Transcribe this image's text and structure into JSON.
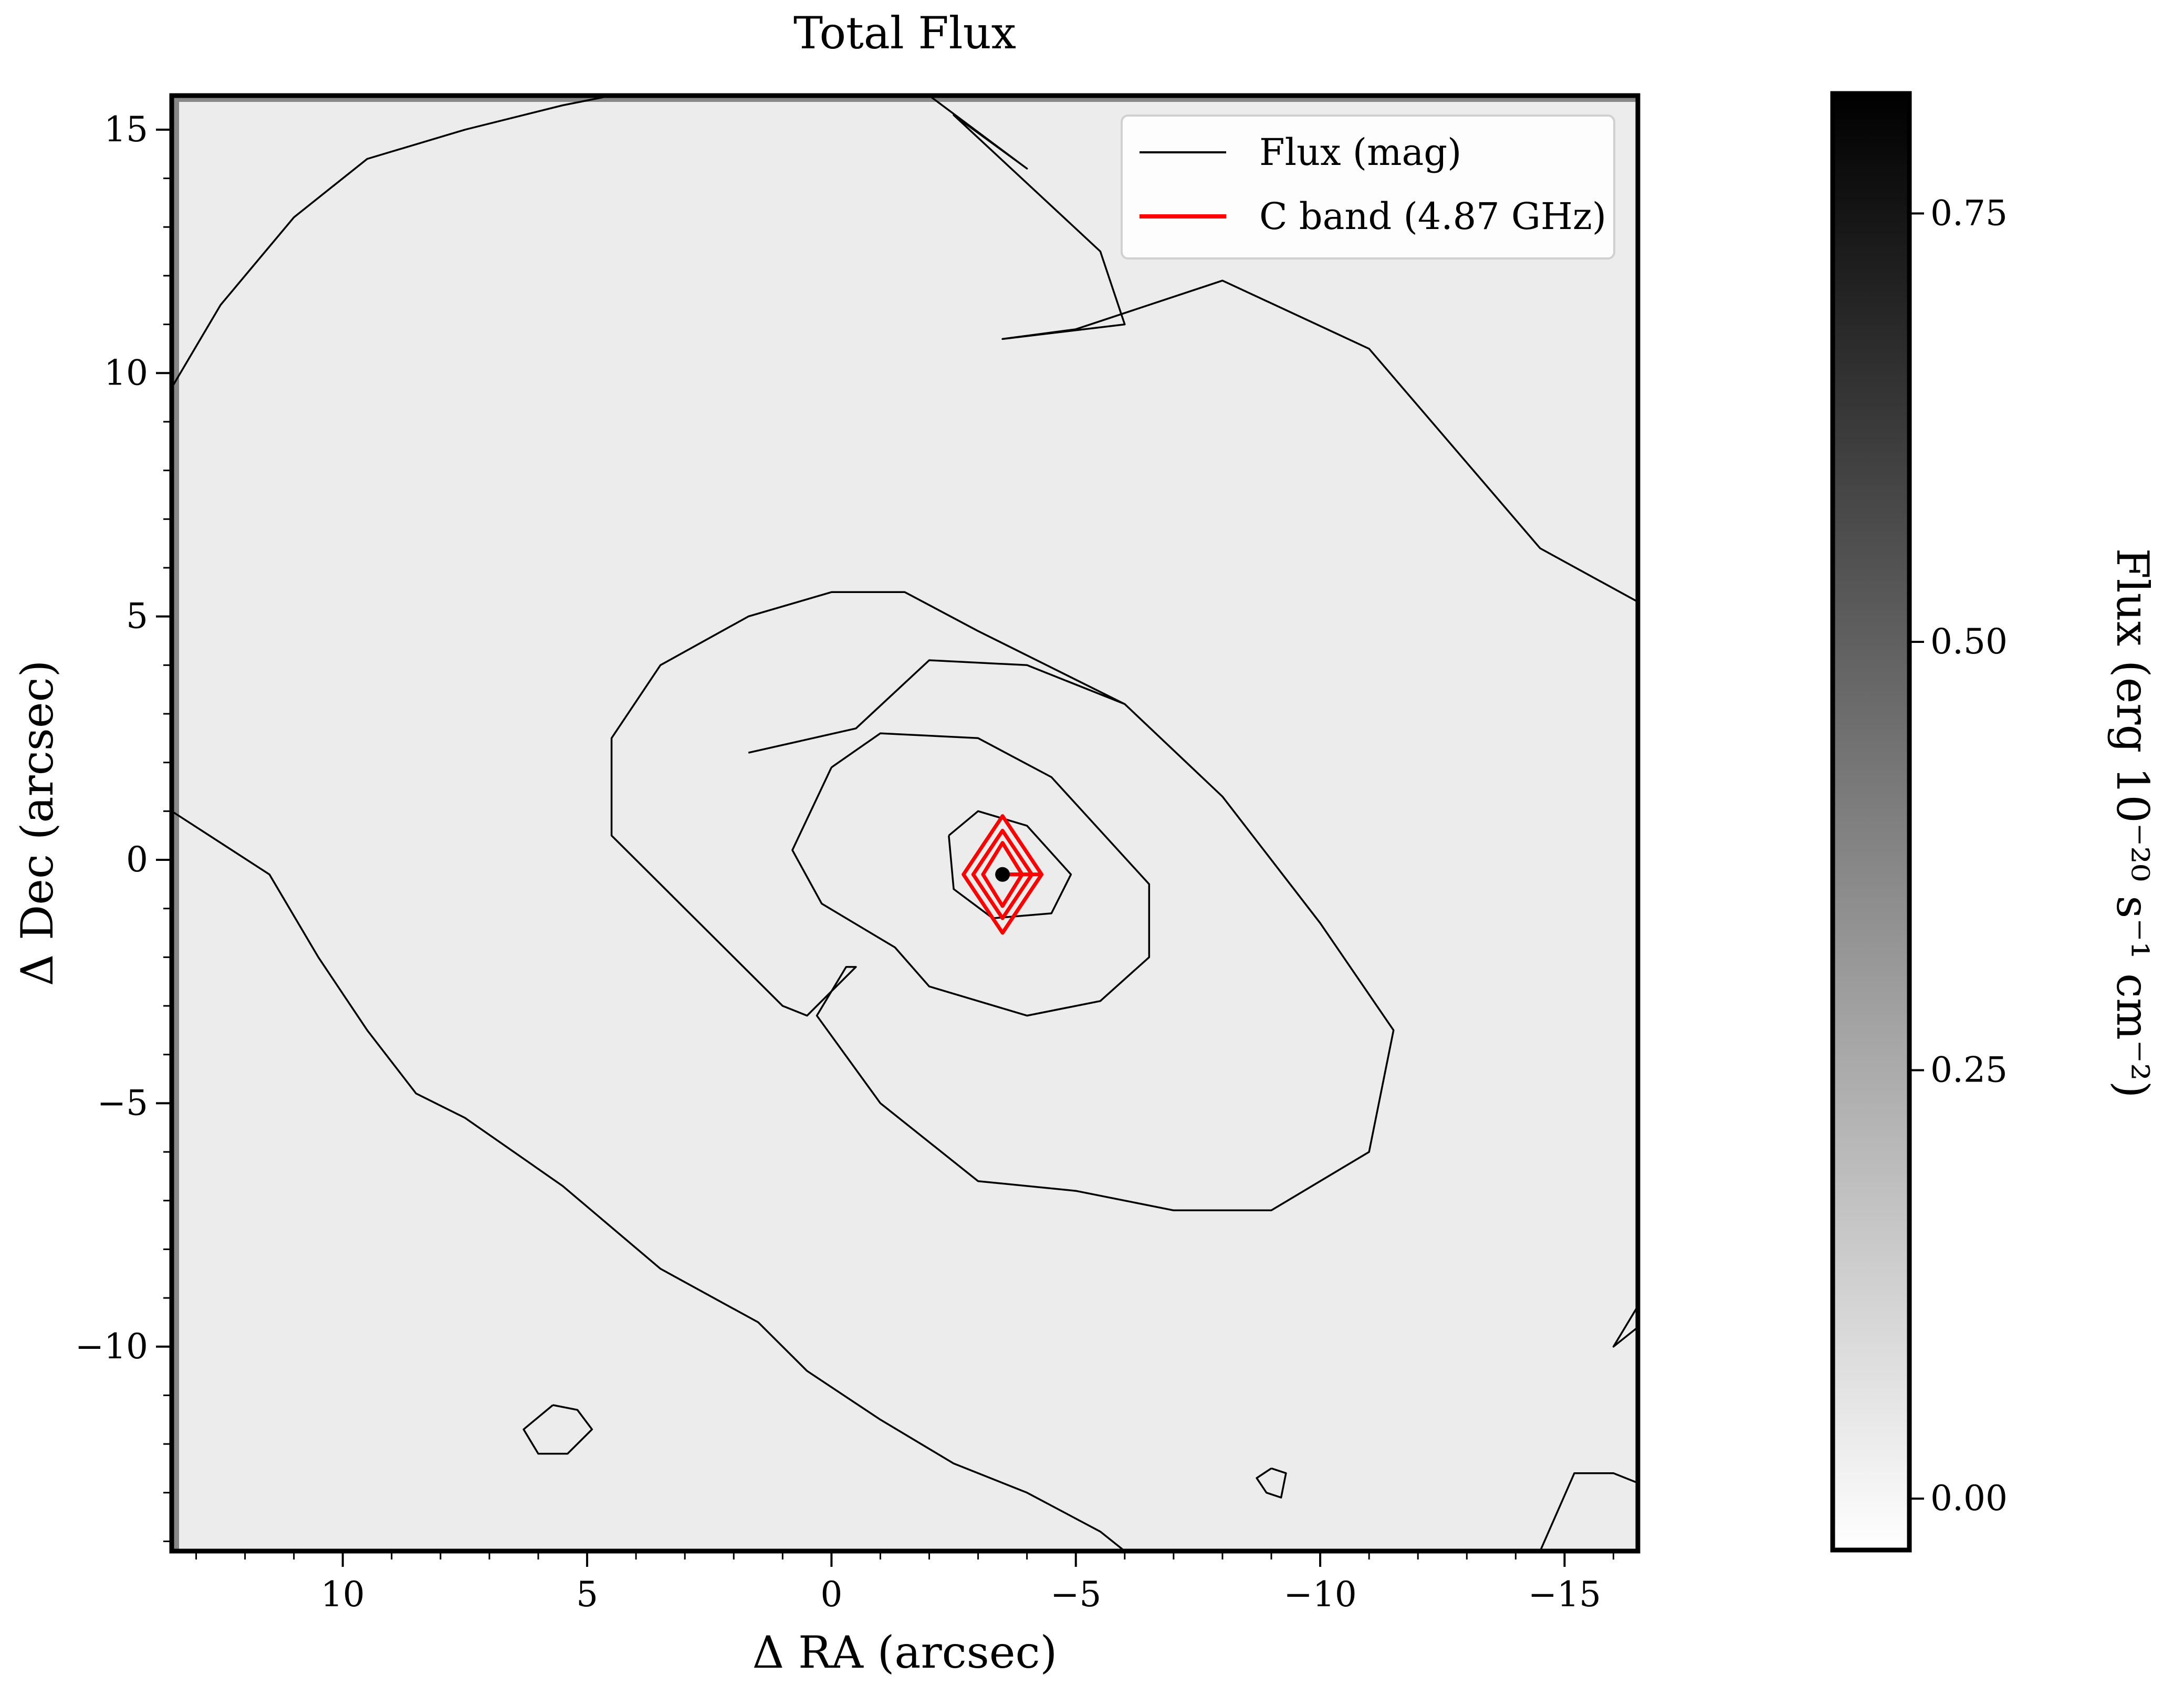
{
  "chart_data": {
    "type": "heatmap",
    "title": "Total Flux",
    "xlabel": "Δ RA (arcsec)",
    "ylabel": "Δ Dec (arcsec)",
    "colorbar_label": "Flux (erg 10⁻²⁰ s⁻¹ cm⁻²)",
    "xlim": [
      13.5,
      -16.5
    ],
    "ylim": [
      -14.2,
      15.7
    ],
    "x_ticks": [
      10,
      5,
      0,
      -5,
      -10,
      -15
    ],
    "x_tick_labels": [
      "10",
      "5",
      "0",
      "−5",
      "−10",
      "−15"
    ],
    "y_ticks": [
      15,
      10,
      5,
      0,
      -5,
      -10
    ],
    "y_tick_labels": [
      "15",
      "10",
      "5",
      "0",
      "−5",
      "−10"
    ],
    "colorbar_range": [
      -0.03,
      0.82
    ],
    "colorbar_ticks": [
      0.0,
      0.25,
      0.5,
      0.75
    ],
    "colorbar_tick_labels": [
      "0.00",
      "0.25",
      "0.50",
      "0.75"
    ],
    "colormap": "gray_r",
    "grid": false,
    "legend_position": "top-right",
    "peak": {
      "x": -3.5,
      "y": -0.3
    },
    "series": [
      {
        "name": "Flux (mag)",
        "color": "#000000",
        "contours": [
          [
            [
              0,
              16
            ],
            [
              -2,
              15.7
            ],
            [
              -4,
              14.2
            ],
            [
              -2.5,
              15.3
            ],
            [
              -5.5,
              12.5
            ],
            [
              -6,
              11
            ],
            [
              -3.5,
              10.7
            ],
            [
              -5,
              10.9
            ],
            [
              -8,
              11.9
            ],
            [
              -11,
              10.5
            ],
            [
              -14.5,
              6.4
            ],
            [
              -16.5,
              5.3
            ]
          ],
          [
            [
              13.5,
              9.7
            ],
            [
              12.5,
              11.4
            ],
            [
              11,
              13.2
            ],
            [
              9.5,
              14.4
            ],
            [
              7.5,
              15
            ],
            [
              5.5,
              15.5
            ],
            [
              4,
              15.8
            ]
          ],
          [
            [
              13.5,
              1
            ],
            [
              11.5,
              -0.3
            ],
            [
              10.5,
              -2
            ],
            [
              9.5,
              -3.5
            ],
            [
              8.5,
              -4.8
            ],
            [
              7.5,
              -5.3
            ],
            [
              5.5,
              -6.7
            ],
            [
              3.5,
              -8.4
            ],
            [
              1.5,
              -9.5
            ],
            [
              0.5,
              -10.5
            ],
            [
              -1,
              -11.5
            ],
            [
              -2.5,
              -12.4
            ],
            [
              -4,
              -13
            ],
            [
              -5.5,
              -13.8
            ],
            [
              -6,
              -14.2
            ]
          ],
          [
            [
              -14.5,
              -14.2
            ],
            [
              -15.2,
              -12.6
            ],
            [
              -16,
              -12.6
            ],
            [
              -16.5,
              -12.8
            ]
          ],
          [
            [
              -16.5,
              -9.6
            ],
            [
              -16,
              -10
            ],
            [
              -16.6,
              -9
            ]
          ],
          [
            [
              1.7,
              2.2
            ],
            [
              -0.5,
              2.7
            ],
            [
              -2,
              4.1
            ],
            [
              -4,
              4
            ],
            [
              -6,
              3.2
            ],
            [
              -8,
              1.3
            ],
            [
              -10,
              -1.3
            ],
            [
              -11.5,
              -3.5
            ],
            [
              -11,
              -6
            ],
            [
              -9,
              -7.2
            ],
            [
              -7,
              -7.2
            ],
            [
              -5,
              -6.8
            ],
            [
              -3,
              -6.6
            ],
            [
              -1,
              -5
            ],
            [
              0.3,
              -3.2
            ],
            [
              -0.3,
              -2.2
            ],
            [
              -0.5,
              -2.2
            ],
            [
              0.5,
              -3.2
            ],
            [
              1,
              -3
            ],
            [
              2,
              -2
            ],
            [
              3,
              -1
            ],
            [
              4.5,
              0.5
            ],
            [
              4.5,
              2.5
            ],
            [
              3.5,
              4
            ],
            [
              1.7,
              5
            ],
            [
              0,
              5.5
            ],
            [
              -1.5,
              5.5
            ],
            [
              -3,
              4.7
            ],
            [
              -6,
              3.2
            ]
          ],
          [
            [
              0,
              1.9
            ],
            [
              -1,
              2.6
            ],
            [
              -3,
              2.5
            ],
            [
              -4.5,
              1.7
            ],
            [
              -6.5,
              -0.5
            ],
            [
              -6.5,
              -2
            ],
            [
              -5.5,
              -2.9
            ],
            [
              -4,
              -3.2
            ],
            [
              -2,
              -2.6
            ],
            [
              -1.3,
              -1.8
            ],
            [
              0.2,
              -0.9
            ],
            [
              0.8,
              0.2
            ],
            [
              0,
              1.9
            ]
          ],
          [
            [
              -2.4,
              0.5
            ],
            [
              -3,
              1
            ],
            [
              -4,
              0.7
            ],
            [
              -4.9,
              -0.3
            ],
            [
              -4.5,
              -1.1
            ],
            [
              -3.3,
              -1.2
            ],
            [
              -2.5,
              -0.6
            ],
            [
              -2.4,
              0.5
            ]
          ],
          [
            [
              5.7,
              -11.2
            ],
            [
              5.2,
              -11.3
            ],
            [
              4.9,
              -11.7
            ],
            [
              5.4,
              -12.2
            ],
            [
              6,
              -12.2
            ],
            [
              6.3,
              -11.7
            ],
            [
              5.7,
              -11.2
            ]
          ],
          [
            [
              -9,
              -12.5
            ],
            [
              -9.3,
              -12.6
            ],
            [
              -9.2,
              -13.1
            ],
            [
              -8.9,
              -13
            ],
            [
              -8.7,
              -12.7
            ],
            [
              -9,
              -12.5
            ]
          ]
        ]
      },
      {
        "name": "C band (4.87 GHz)",
        "color": "#ff0000",
        "contours": [
          [
            [
              -3.5,
              -0.3
            ],
            [
              -4.3,
              -0.3
            ],
            [
              -3.5,
              0.9
            ],
            [
              -2.7,
              -0.3
            ],
            [
              -3.5,
              -1.5
            ],
            [
              -4.3,
              -0.3
            ]
          ],
          [
            [
              -3.5,
              -0.3
            ],
            [
              -4.1,
              -0.3
            ],
            [
              -3.5,
              0.6
            ],
            [
              -2.9,
              -0.3
            ],
            [
              -3.5,
              -1.2
            ],
            [
              -4.1,
              -0.3
            ]
          ],
          [
            [
              -3.5,
              -0.3
            ],
            [
              -3.9,
              -0.3
            ],
            [
              -3.5,
              0.35
            ],
            [
              -3.1,
              -0.3
            ],
            [
              -3.5,
              -0.95
            ],
            [
              -3.9,
              -0.3
            ]
          ]
        ]
      }
    ]
  }
}
